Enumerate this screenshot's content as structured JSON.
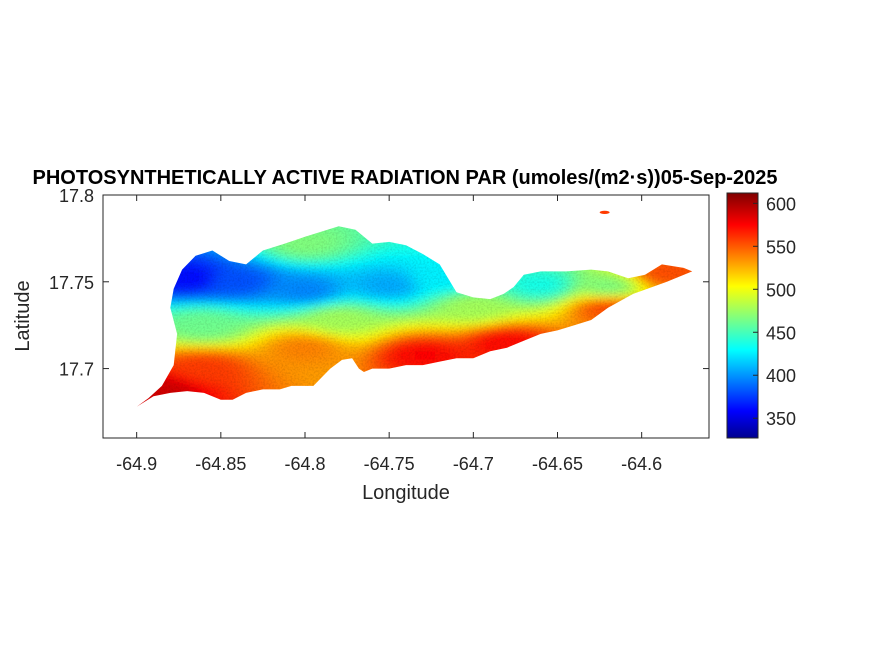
{
  "chart_data": {
    "type": "heatmap",
    "title": "PHOTOSYNTHETICALLY ACTIVE RADIATION PAR (umoles/(m2·s))05-Sep-2025",
    "xlabel": "Longitude",
    "ylabel": "Latitude",
    "xlim": [
      -64.92,
      -64.56
    ],
    "ylim": [
      17.66,
      17.8
    ],
    "x_ticks": [
      -64.9,
      -64.85,
      -64.8,
      -64.75,
      -64.7,
      -64.65,
      -64.6
    ],
    "x_tick_labels": [
      "-64.9",
      "-64.85",
      "-64.8",
      "-64.75",
      "-64.7",
      "-64.65",
      "-64.6"
    ],
    "y_ticks": [
      17.7,
      17.75,
      17.8
    ],
    "y_tick_labels": [
      "17.7",
      "17.75",
      "17.8"
    ],
    "colorbar": {
      "colormap": "jet",
      "range": [
        327,
        612
      ],
      "ticks": [
        350,
        400,
        450,
        500,
        550,
        600
      ],
      "tick_labels": [
        "350",
        "400",
        "450",
        "500",
        "550",
        "600"
      ]
    },
    "grid": false,
    "field_samples": [
      {
        "lon": -64.87,
        "lat": 17.752,
        "value": 365
      },
      {
        "lon": -64.84,
        "lat": 17.75,
        "value": 385
      },
      {
        "lon": -64.8,
        "lat": 17.745,
        "value": 400
      },
      {
        "lon": -64.75,
        "lat": 17.748,
        "value": 410
      },
      {
        "lon": -64.72,
        "lat": 17.752,
        "value": 430
      },
      {
        "lon": -64.8,
        "lat": 17.772,
        "value": 470
      },
      {
        "lon": -64.66,
        "lat": 17.748,
        "value": 440
      },
      {
        "lon": -64.62,
        "lat": 17.747,
        "value": 470
      },
      {
        "lon": -64.86,
        "lat": 17.725,
        "value": 465
      },
      {
        "lon": -64.78,
        "lat": 17.728,
        "value": 480
      },
      {
        "lon": -64.7,
        "lat": 17.735,
        "value": 480
      },
      {
        "lon": -64.86,
        "lat": 17.7,
        "value": 560
      },
      {
        "lon": -64.8,
        "lat": 17.712,
        "value": 540
      },
      {
        "lon": -64.73,
        "lat": 17.708,
        "value": 575
      },
      {
        "lon": -64.68,
        "lat": 17.715,
        "value": 575
      },
      {
        "lon": -64.62,
        "lat": 17.735,
        "value": 555
      },
      {
        "lon": -64.885,
        "lat": 17.688,
        "value": 590
      },
      {
        "lon": -64.585,
        "lat": 17.755,
        "value": 555
      }
    ],
    "island_outline": [
      [
        -64.9,
        17.678
      ],
      [
        -64.893,
        17.683
      ],
      [
        -64.885,
        17.69
      ],
      [
        -64.878,
        17.702
      ],
      [
        -64.876,
        17.72
      ],
      [
        -64.88,
        17.735
      ],
      [
        -64.878,
        17.746
      ],
      [
        -64.873,
        17.757
      ],
      [
        -64.865,
        17.765
      ],
      [
        -64.855,
        17.768
      ],
      [
        -64.845,
        17.762
      ],
      [
        -64.835,
        17.76
      ],
      [
        -64.825,
        17.768
      ],
      [
        -64.812,
        17.772
      ],
      [
        -64.8,
        17.776
      ],
      [
        -64.79,
        17.779
      ],
      [
        -64.78,
        17.782
      ],
      [
        -64.77,
        17.78
      ],
      [
        -64.76,
        17.772
      ],
      [
        -64.75,
        17.773
      ],
      [
        -64.74,
        17.771
      ],
      [
        -64.73,
        17.766
      ],
      [
        -64.72,
        17.76
      ],
      [
        -64.71,
        17.744
      ],
      [
        -64.7,
        17.741
      ],
      [
        -64.69,
        17.74
      ],
      [
        -64.682,
        17.743
      ],
      [
        -64.676,
        17.747
      ],
      [
        -64.67,
        17.754
      ],
      [
        -64.66,
        17.756
      ],
      [
        -64.645,
        17.756
      ],
      [
        -64.63,
        17.757
      ],
      [
        -64.62,
        17.756
      ],
      [
        -64.608,
        17.752
      ],
      [
        -64.598,
        17.754
      ],
      [
        -64.588,
        17.76
      ],
      [
        -64.575,
        17.758
      ],
      [
        -64.57,
        17.756
      ],
      [
        -64.585,
        17.75
      ],
      [
        -64.605,
        17.743
      ],
      [
        -64.62,
        17.735
      ],
      [
        -64.63,
        17.728
      ],
      [
        -64.64,
        17.725
      ],
      [
        -64.65,
        17.722
      ],
      [
        -64.66,
        17.72
      ],
      [
        -64.67,
        17.716
      ],
      [
        -64.68,
        17.712
      ],
      [
        -64.69,
        17.71
      ],
      [
        -64.7,
        17.706
      ],
      [
        -64.71,
        17.706
      ],
      [
        -64.72,
        17.704
      ],
      [
        -64.73,
        17.702
      ],
      [
        -64.74,
        17.702
      ],
      [
        -64.75,
        17.7
      ],
      [
        -64.76,
        17.7
      ],
      [
        -64.765,
        17.698
      ],
      [
        -64.768,
        17.7
      ],
      [
        -64.772,
        17.706
      ],
      [
        -64.778,
        17.705
      ],
      [
        -64.785,
        17.7
      ],
      [
        -64.79,
        17.695
      ],
      [
        -64.795,
        17.69
      ],
      [
        -64.8,
        17.69
      ],
      [
        -64.808,
        17.69
      ],
      [
        -64.815,
        17.688
      ],
      [
        -64.825,
        17.688
      ],
      [
        -64.835,
        17.686
      ],
      [
        -64.843,
        17.682
      ],
      [
        -64.85,
        17.682
      ],
      [
        -64.86,
        17.686
      ],
      [
        -64.87,
        17.687
      ],
      [
        -64.88,
        17.686
      ],
      [
        -64.89,
        17.684
      ],
      [
        -64.9,
        17.678
      ]
    ],
    "islets": [
      [
        -64.622,
        17.79
      ]
    ]
  }
}
